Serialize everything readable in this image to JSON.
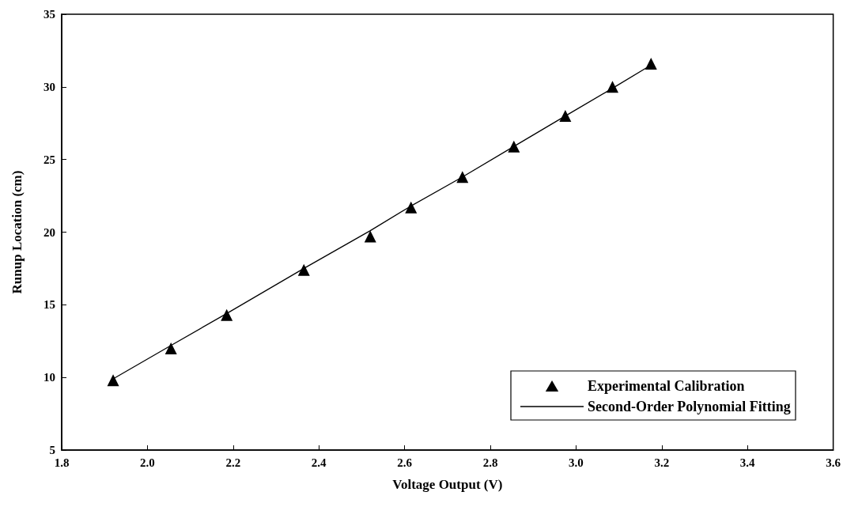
{
  "chart_data": {
    "type": "scatter",
    "xlabel": "Voltage Output (V)",
    "ylabel": "Runup Location (cm)",
    "xlim": [
      1.8,
      3.6
    ],
    "xticks": [
      {
        "value": 1.8,
        "label": "1.8"
      },
      {
        "value": 2.0,
        "label": "2.0"
      },
      {
        "value": 2.2,
        "label": "2.2"
      },
      {
        "value": 2.4,
        "label": "2.4"
      },
      {
        "value": 2.6,
        "label": "2.6"
      },
      {
        "value": 2.8,
        "label": "2.8"
      },
      {
        "value": 3.0,
        "label": "3.0"
      },
      {
        "value": 3.2,
        "label": "3.2"
      },
      {
        "value": 3.4,
        "label": "3.4"
      },
      {
        "value": 3.6,
        "label": "3.6"
      }
    ],
    "ylim": [
      5,
      35
    ],
    "yticks": [
      5,
      10,
      15,
      20,
      25,
      30,
      35
    ],
    "grid": false,
    "legend": "bottom right",
    "series": [
      {
        "name": "Experimental Calibration",
        "marker": "triangle",
        "color": "#000000",
        "x": [
          1.92,
          2.055,
          2.185,
          2.365,
          2.52,
          2.615,
          2.735,
          2.855,
          2.975,
          3.085,
          3.175
        ],
        "values": [
          9.8,
          12.0,
          14.3,
          17.4,
          19.7,
          21.7,
          23.8,
          25.9,
          28.0,
          30.0,
          31.6
        ]
      },
      {
        "name": "Second-Order Polynomial Fitting",
        "type": "line",
        "marker": "none",
        "line_style": "solid",
        "color": "#000000",
        "x": [
          1.92,
          2.055,
          2.185,
          2.365,
          2.52,
          2.615,
          2.735,
          2.855,
          2.975,
          3.085,
          3.175
        ],
        "values": [
          9.9,
          12.2,
          14.4,
          17.5,
          20.1,
          21.8,
          23.8,
          25.9,
          28.0,
          29.9,
          31.5
        ]
      }
    ]
  }
}
